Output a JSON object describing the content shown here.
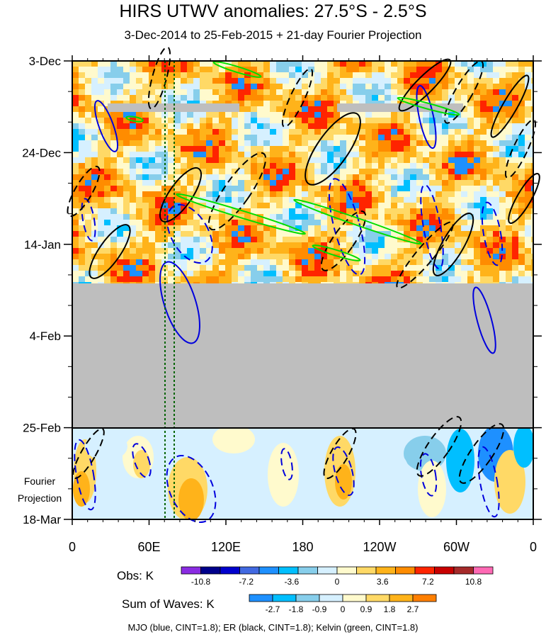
{
  "title": "HIRS UTWV anomalies: 27.5°S - 2.5°S",
  "subtitle": "3-Dec-2014 to 25-Feb-2015 + 21-day Fourier Projection",
  "projection_label_1": "Fourier",
  "projection_label_2": "Projection",
  "obs_label": "Obs: K",
  "waves_label": "Sum of Waves: K",
  "footer": "MJO (blue, CINT=1.8); ER (black, CINT=1.8); Kelvin (green, CINT=1.8)",
  "chart_data": {
    "type": "heatmap",
    "x_ticks": [
      "0",
      "60E",
      "120E",
      "180",
      "120W",
      "60W",
      "0"
    ],
    "y_ticks": [
      "3-Dec",
      "24-Dec",
      "14-Jan",
      "4-Feb",
      "25-Feb",
      "18-Mar"
    ],
    "obs_colorbar": {
      "label": "Obs: K",
      "tick_labels": [
        "-10.8",
        "-7.2",
        "-3.6",
        "0",
        "3.6",
        "7.2",
        "10.8"
      ],
      "colors": [
        "#8a2be2",
        "#00008b",
        "#0000cd",
        "#4169e1",
        "#1e90ff",
        "#00bfff",
        "#87ceeb",
        "#d6f0ff",
        "#fffacd",
        "#ffd966",
        "#ffb31a",
        "#ff8c00",
        "#ff2400",
        "#c80000",
        "#a52a2a",
        "#ff69b4"
      ]
    },
    "waves_colorbar": {
      "label": "Sum of Waves: K",
      "tick_labels": [
        "-2.7",
        "-1.8",
        "-0.9",
        "0",
        "0.9",
        "1.8",
        "2.7"
      ],
      "colors": [
        "#1e90ff",
        "#00bfff",
        "#87ceeb",
        "#d6f0ff",
        "#fffacd",
        "#ffd966",
        "#ffb31a",
        "#ff7f00"
      ]
    },
    "contours": [
      {
        "wave": "MJO",
        "color": "#0000dd",
        "cint": 1.8
      },
      {
        "wave": "ER",
        "color": "#000000",
        "cint": 1.8
      },
      {
        "wave": "Kelvin",
        "color": "#00dd00",
        "cint": 1.8
      }
    ],
    "missing_data_color": "#bebebe"
  }
}
